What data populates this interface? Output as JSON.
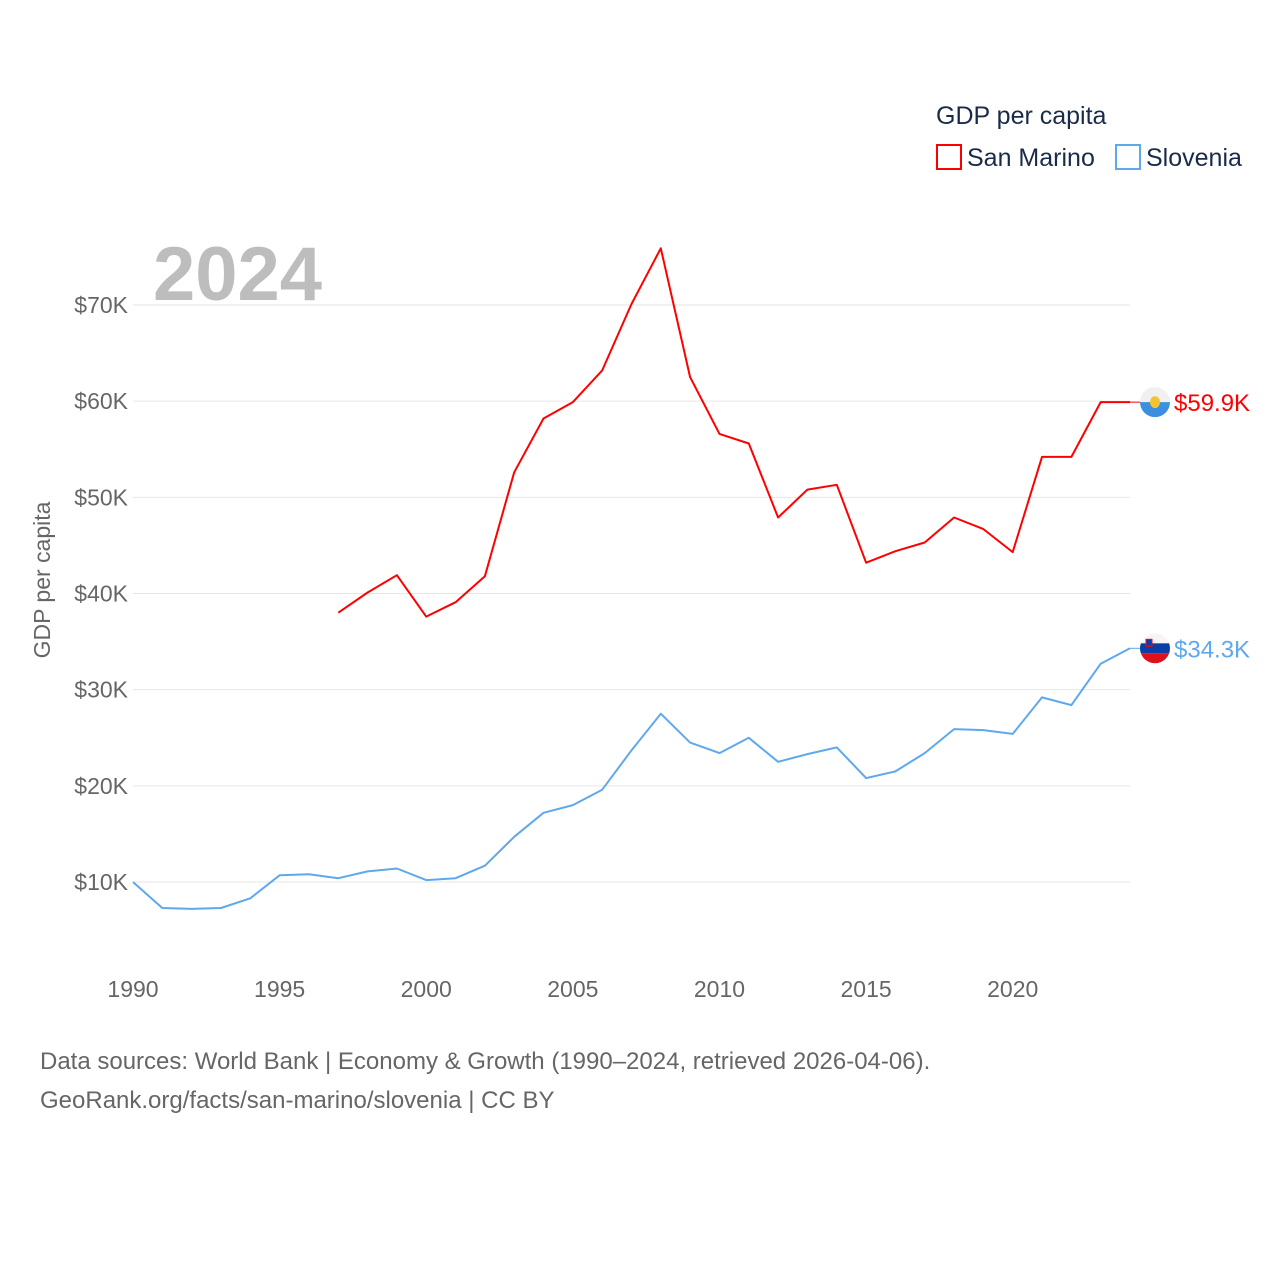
{
  "chart_data": {
    "type": "line",
    "title": "GDP per capita",
    "year_label": "2024",
    "xlabel": "",
    "ylabel": "GDP per capita",
    "xlim": [
      1990,
      2024
    ],
    "ylim": [
      0,
      75900
    ],
    "x_ticks": [
      1990,
      1995,
      2000,
      2005,
      2010,
      2015,
      2020
    ],
    "y_ticks": [
      10000,
      20000,
      30000,
      40000,
      50000,
      60000,
      70000
    ],
    "y_tick_labels": [
      "$10K",
      "$20K",
      "$30K",
      "$40K",
      "$50K",
      "$60K",
      "$70K"
    ],
    "grid": true,
    "legend_placement": "top-right",
    "series": [
      {
        "name": "San Marino",
        "color": "#ff0000",
        "end_label": "$59.9K",
        "x": [
          1997,
          1998,
          1999,
          2000,
          2001,
          2002,
          2003,
          2004,
          2005,
          2006,
          2007,
          2008,
          2009,
          2010,
          2011,
          2012,
          2013,
          2014,
          2015,
          2016,
          2017,
          2018,
          2019,
          2020,
          2021,
          2022,
          2023,
          2024
        ],
        "values": [
          38000,
          40100,
          41900,
          37600,
          39100,
          41800,
          52600,
          58200,
          59900,
          63200,
          70100,
          75900,
          62500,
          56600,
          55600,
          47900,
          50800,
          51300,
          43200,
          44400,
          45300,
          47900,
          46700,
          44300,
          54200,
          54200,
          59900,
          59900
        ]
      },
      {
        "name": "Slovenia",
        "color": "#5ea8ee",
        "end_label": "$34.3K",
        "x": [
          1990,
          1991,
          1992,
          1993,
          1994,
          1995,
          1996,
          1997,
          1998,
          1999,
          2000,
          2001,
          2002,
          2003,
          2004,
          2005,
          2006,
          2007,
          2008,
          2009,
          2010,
          2011,
          2012,
          2013,
          2014,
          2015,
          2016,
          2017,
          2018,
          2019,
          2020,
          2021,
          2022,
          2023,
          2024
        ],
        "values": [
          10000,
          7300,
          7200,
          7300,
          8300,
          10700,
          10800,
          10400,
          11100,
          11400,
          10200,
          10400,
          11700,
          14700,
          17200,
          18000,
          19600,
          23700,
          27500,
          24500,
          23400,
          25000,
          22500,
          23300,
          24000,
          20800,
          21500,
          23400,
          25900,
          25800,
          25400,
          29200,
          28400,
          32700,
          34300
        ]
      }
    ]
  },
  "footer": {
    "line1": "Data sources: World Bank | Economy & Growth (1990–2024, retrieved 2026-04-06).",
    "line2": "GeoRank.org/facts/san-marino/slovenia | CC BY"
  }
}
